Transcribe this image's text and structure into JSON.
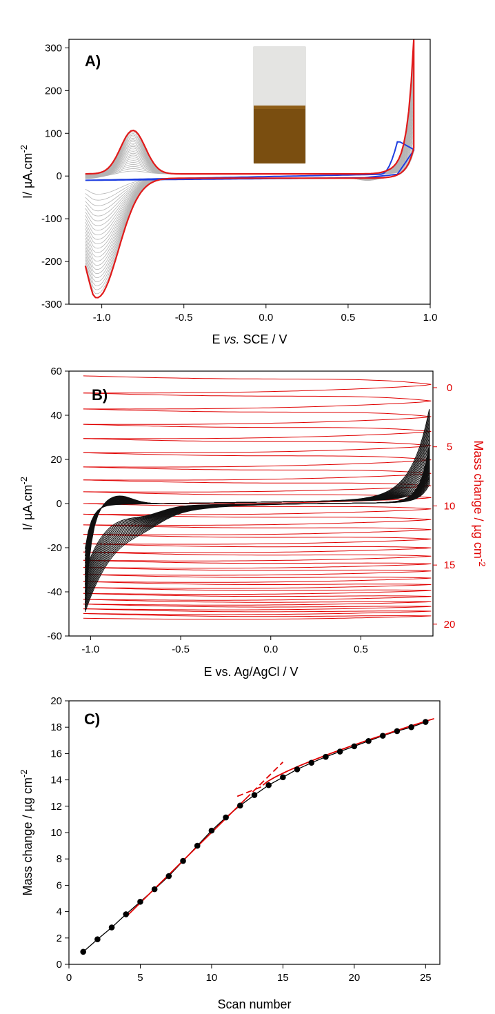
{
  "colors": {
    "gray_cycles": "#b4b4b4",
    "red_highlight": "#e11a1a",
    "blue_first": "#1f3fe0",
    "black_cycles": "#111111",
    "mass_red": "#e00000",
    "vial_glass": "#e4e4e2",
    "vial_film": "#7a4e10"
  },
  "chart_data": [
    {
      "type": "line",
      "panel_label": "A)",
      "xlabel": {
        "pre": "E ",
        "em": "vs.",
        "post": " SCE / V"
      },
      "ylabel": {
        "main": "I/ µA.cm",
        "sup": "-2"
      },
      "xlim": [
        -1.2,
        1.0
      ],
      "ylim": [
        -300,
        320
      ],
      "xticks": [
        "-1.0",
        "-0.5",
        "0.0",
        "0.5",
        "1.0"
      ],
      "xtick_values": [
        -1.0,
        -0.5,
        0.0,
        0.5,
        1.0
      ],
      "yticks": [
        "-300",
        "-200",
        "-100",
        "0",
        "100",
        "200",
        "300"
      ],
      "ytick_values": [
        -300,
        -200,
        -100,
        0,
        100,
        200,
        300
      ],
      "cycle_count": 25,
      "inset_image": "photo-of-coated-electrode",
      "cycles": {
        "first": {
          "ox_peak": [
            0.8,
            80
          ],
          "ox_end": 60,
          "red_peak": [
            -1.0,
            -10
          ]
        },
        "last": {
          "ox_peak": [
            0.9,
            315
          ],
          "red_peak": [
            -1.03,
            -280
          ],
          "anodic_peak": [
            -0.81,
            102
          ]
        }
      }
    },
    {
      "type": "line",
      "panel_label": "B)",
      "xlabel": "E vs. Ag/AgCl / V",
      "ylabel": {
        "main": "I/ µA.cm",
        "sup": "-2"
      },
      "y2label": {
        "main": "Mass change / µg cm",
        "sup": "-2"
      },
      "xlim": [
        -1.12,
        0.9
      ],
      "ylim": [
        -60,
        60
      ],
      "y2lim": [
        -1.4,
        21
      ],
      "y2_inverted": true,
      "xticks": [
        "-1.0",
        "-0.5",
        "0.0",
        "0.5"
      ],
      "xtick_values": [
        -1.0,
        -0.5,
        0.0,
        0.5
      ],
      "yticks": [
        "-60",
        "-40",
        "-20",
        "0",
        "20",
        "40",
        "60"
      ],
      "ytick_values": [
        -60,
        -40,
        -20,
        0,
        20,
        40,
        60
      ],
      "y2ticks": [
        "0",
        "5",
        "10",
        "15",
        "20"
      ],
      "y2tick_values": [
        0,
        5,
        10,
        15,
        20
      ],
      "mass_cycle_levels": [
        -1.0,
        0.45,
        1.8,
        3.1,
        4.3,
        5.5,
        6.7,
        7.8,
        8.8,
        9.8,
        10.7,
        11.6,
        12.4,
        13.2,
        13.9,
        14.6,
        15.2,
        15.8,
        16.4,
        16.9,
        17.4,
        17.9,
        18.3,
        18.7,
        19.1,
        19.5
      ],
      "black_cycles": {
        "ox_end": [
          0.88,
          41
        ],
        "red_end": [
          -1.03,
          -48
        ]
      }
    },
    {
      "type": "scatter",
      "panel_label": "C)",
      "xlabel": "Scan number",
      "ylabel": {
        "main": "Mass change / µg cm",
        "sup": "-2"
      },
      "xlim": [
        0,
        26
      ],
      "ylim": [
        0,
        20
      ],
      "xticks": [
        "0",
        "5",
        "10",
        "15",
        "20",
        "25"
      ],
      "xtick_values": [
        0,
        5,
        10,
        15,
        20,
        25
      ],
      "yticks": [
        "0",
        "2",
        "4",
        "6",
        "8",
        "10",
        "12",
        "14",
        "16",
        "18",
        "20"
      ],
      "ytick_values": [
        0,
        2,
        4,
        6,
        8,
        10,
        12,
        14,
        16,
        18,
        20
      ],
      "x": [
        1,
        2,
        3,
        4,
        5,
        6,
        7,
        8,
        9,
        10,
        11,
        12,
        13,
        14,
        15,
        16,
        17,
        18,
        19,
        20,
        21,
        22,
        23,
        24,
        25
      ],
      "y": [
        0.95,
        1.9,
        2.8,
        3.8,
        4.75,
        5.7,
        6.7,
        7.85,
        9.0,
        10.15,
        11.15,
        12.05,
        12.85,
        13.6,
        14.2,
        14.8,
        15.3,
        15.75,
        16.15,
        16.55,
        16.95,
        17.35,
        17.7,
        18.0,
        18.4
      ],
      "fits": [
        {
          "x": [
            4,
            15
          ],
          "y": [
            3.6,
            15.35
          ],
          "style": "solid-then-dashed"
        },
        {
          "x": [
            11.8,
            25.6
          ],
          "y": [
            12.75,
            18.65
          ],
          "style": "dashed-then-solid"
        }
      ]
    }
  ]
}
